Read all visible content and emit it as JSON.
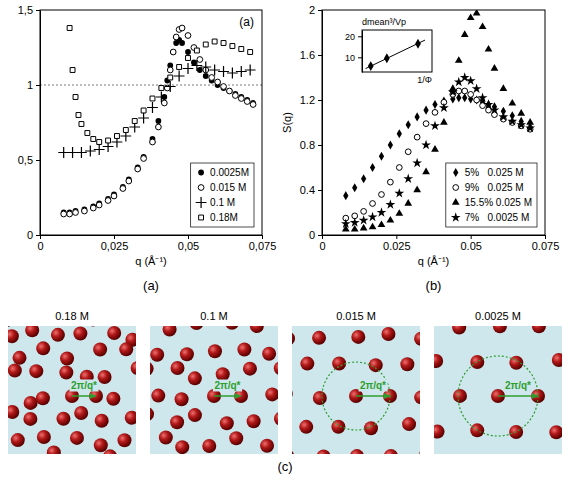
{
  "chart_data": [
    {
      "type": "scatter",
      "title": "(a)",
      "annotations": [
        "(a)"
      ],
      "x_label": "q (Å⁻¹)",
      "xlim": [
        0,
        0.075
      ],
      "xticks": [
        0,
        {
          "value": 0.025,
          "label": "0,025"
        },
        {
          "value": 0.05,
          "label": "0,05"
        },
        {
          "value": 0.075,
          "label": "0,075"
        }
      ],
      "ylim": [
        0,
        1.5
      ],
      "yticks": [
        0,
        {
          "value": 0.5,
          "label": "0,5"
        },
        1,
        {
          "value": 1.5,
          "label": "1,5"
        }
      ],
      "reference_lines": [
        1
      ],
      "legend": "lower right",
      "series": [
        {
          "name": "0.0025M",
          "marker": "filled-circle",
          "color": "#000000",
          "x": [
            0.008,
            0.01,
            0.012,
            0.015,
            0.018,
            0.02,
            0.023,
            0.025,
            0.028,
            0.03,
            0.033,
            0.035,
            0.038,
            0.04,
            0.042,
            0.043,
            0.044,
            0.045,
            0.046,
            0.047,
            0.048,
            0.05,
            0.052,
            0.054,
            0.056,
            0.058,
            0.06,
            0.062,
            0.064,
            0.066,
            0.068,
            0.07,
            0.072
          ],
          "values": [
            0.15,
            0.15,
            0.16,
            0.17,
            0.19,
            0.21,
            0.24,
            0.27,
            0.32,
            0.37,
            0.45,
            0.52,
            0.64,
            0.76,
            0.92,
            1.03,
            1.13,
            1.22,
            1.28,
            1.3,
            1.28,
            1.22,
            1.15,
            1.1,
            1.06,
            1.03,
            1.0,
            0.98,
            0.96,
            0.94,
            0.92,
            0.9,
            0.88
          ]
        },
        {
          "name": "0.015 M",
          "marker": "open-circle",
          "color": "#000000",
          "x": [
            0.008,
            0.01,
            0.012,
            0.015,
            0.018,
            0.02,
            0.023,
            0.025,
            0.028,
            0.03,
            0.033,
            0.035,
            0.038,
            0.04,
            0.042,
            0.043,
            0.044,
            0.045,
            0.046,
            0.047,
            0.048,
            0.05,
            0.052,
            0.054,
            0.056,
            0.058,
            0.06,
            0.062,
            0.064,
            0.066,
            0.068,
            0.07,
            0.072
          ],
          "values": [
            0.14,
            0.14,
            0.15,
            0.16,
            0.18,
            0.2,
            0.23,
            0.26,
            0.31,
            0.36,
            0.44,
            0.51,
            0.62,
            0.72,
            0.88,
            0.98,
            1.1,
            1.22,
            1.32,
            1.37,
            1.38,
            1.33,
            1.25,
            1.17,
            1.1,
            1.05,
            1.02,
            0.99,
            0.96,
            0.93,
            0.91,
            0.89,
            0.87
          ]
        },
        {
          "name": "0.1 M",
          "marker": "plus",
          "color": "#000000",
          "x": [
            0.008,
            0.011,
            0.014,
            0.017,
            0.02,
            0.023,
            0.026,
            0.029,
            0.032,
            0.035,
            0.038,
            0.041,
            0.044,
            0.047,
            0.05,
            0.053,
            0.056,
            0.059,
            0.062,
            0.065,
            0.068,
            0.071
          ],
          "values": [
            0.55,
            0.55,
            0.55,
            0.56,
            0.57,
            0.59,
            0.62,
            0.66,
            0.72,
            0.78,
            0.85,
            0.92,
            0.99,
            1.06,
            1.11,
            1.13,
            1.12,
            1.1,
            1.09,
            1.08,
            1.09,
            1.1
          ]
        },
        {
          "name": "0.18M",
          "marker": "open-square",
          "color": "#000000",
          "x": [
            0.01,
            0.011,
            0.012,
            0.013,
            0.014,
            0.016,
            0.018,
            0.02,
            0.023,
            0.026,
            0.029,
            0.032,
            0.035,
            0.038,
            0.041,
            0.044,
            0.047,
            0.05,
            0.053,
            0.056,
            0.059,
            0.062,
            0.065,
            0.068,
            0.071
          ],
          "values": [
            1.38,
            1.1,
            0.92,
            0.8,
            0.74,
            0.68,
            0.64,
            0.62,
            0.63,
            0.66,
            0.7,
            0.76,
            0.83,
            0.91,
            0.98,
            1.05,
            1.12,
            1.18,
            1.23,
            1.27,
            1.29,
            1.28,
            1.26,
            1.24,
            1.22
          ]
        }
      ]
    },
    {
      "type": "scatter",
      "title": "(b)",
      "x_label": "q (Å⁻¹)",
      "y_label": "S(q)",
      "xlim": [
        0,
        0.075
      ],
      "xticks": [
        0,
        0.025,
        0.05,
        0.075
      ],
      "ylim": [
        0,
        2
      ],
      "yticks": [
        0,
        0.4,
        0.8,
        1.2,
        1.6,
        2
      ],
      "legend": "lower right",
      "series": [
        {
          "name": "5%   0.025 M",
          "marker": "filled-diamond",
          "color": "#000000",
          "x": [
            0.008,
            0.011,
            0.014,
            0.017,
            0.02,
            0.023,
            0.026,
            0.029,
            0.032,
            0.035,
            0.038,
            0.041,
            0.044,
            0.046,
            0.048,
            0.05,
            0.052,
            0.054,
            0.056,
            0.058,
            0.061,
            0.064,
            0.067,
            0.07
          ],
          "values": [
            0.35,
            0.42,
            0.5,
            0.6,
            0.7,
            0.8,
            0.9,
            0.98,
            1.05,
            1.11,
            1.16,
            1.19,
            1.21,
            1.22,
            1.22,
            1.21,
            1.2,
            1.18,
            1.16,
            1.14,
            1.1,
            1.06,
            1.01,
            0.96
          ]
        },
        {
          "name": "9%   0.025 M",
          "marker": "open-circle",
          "color": "#000000",
          "x": [
            0.008,
            0.011,
            0.014,
            0.017,
            0.02,
            0.023,
            0.026,
            0.029,
            0.032,
            0.035,
            0.038,
            0.041,
            0.044,
            0.046,
            0.048,
            0.05,
            0.052,
            0.054,
            0.056,
            0.058,
            0.061,
            0.064,
            0.067,
            0.07
          ],
          "values": [
            0.15,
            0.17,
            0.21,
            0.28,
            0.36,
            0.47,
            0.6,
            0.74,
            0.87,
            0.99,
            1.09,
            1.18,
            1.25,
            1.28,
            1.28,
            1.25,
            1.2,
            1.15,
            1.11,
            1.07,
            1.03,
            1.0,
            0.97,
            0.94
          ]
        },
        {
          "name": "15.5% 0.025 M",
          "marker": "filled-triangle",
          "color": "#000000",
          "x": [
            0.008,
            0.011,
            0.014,
            0.017,
            0.02,
            0.023,
            0.026,
            0.029,
            0.032,
            0.035,
            0.038,
            0.041,
            0.044,
            0.046,
            0.048,
            0.05,
            0.052,
            0.054,
            0.056,
            0.058,
            0.061,
            0.064,
            0.067,
            0.07
          ],
          "values": [
            0.05,
            0.05,
            0.06,
            0.07,
            0.09,
            0.13,
            0.19,
            0.28,
            0.4,
            0.56,
            0.76,
            1.0,
            1.3,
            1.55,
            1.78,
            1.93,
            1.97,
            1.85,
            1.65,
            1.48,
            1.3,
            1.17,
            1.08,
            1.0
          ]
        },
        {
          "name": "7%   0.0025 M",
          "marker": "star",
          "color": "#000000",
          "x": [
            0.008,
            0.011,
            0.014,
            0.017,
            0.02,
            0.023,
            0.026,
            0.029,
            0.032,
            0.035,
            0.038,
            0.041,
            0.044,
            0.046,
            0.048,
            0.05,
            0.052,
            0.054,
            0.056,
            0.058,
            0.061,
            0.064,
            0.067,
            0.07
          ],
          "values": [
            0.1,
            0.11,
            0.13,
            0.16,
            0.2,
            0.27,
            0.37,
            0.5,
            0.64,
            0.8,
            0.97,
            1.13,
            1.27,
            1.36,
            1.4,
            1.37,
            1.3,
            1.22,
            1.16,
            1.11,
            1.05,
            1.01,
            0.98,
            0.95
          ]
        }
      ]
    },
    {
      "type": "scatter",
      "x_label": "1/Φ",
      "y_label": "dmean³/Vp",
      "xlim": [
        4,
        24
      ],
      "ylim": [
        3,
        23
      ],
      "yticks": [
        10,
        20
      ],
      "tick_labels": "y",
      "series": [
        {
          "marker": "filled-diamond",
          "color": "#000000",
          "x": [
            6.5,
            11.1,
            20
          ],
          "values": [
            5.8,
            9.5,
            16.5
          ]
        },
        {
          "type": "line",
          "line_style": "solid",
          "color": "#000000",
          "x": [
            5,
            22
          ],
          "values": [
            4.6,
            18.2
          ]
        }
      ]
    }
  ],
  "diagram": {
    "panels": [
      {
        "label": "0.18 M",
        "distance_label": "2π/q*",
        "neighbour_circle": false
      },
      {
        "label": "0.1 M",
        "distance_label": "2π/q*",
        "neighbour_circle": false
      },
      {
        "label": "0.015 M",
        "distance_label": "2π/q*",
        "neighbour_circle": true
      },
      {
        "label": "0.0025 M",
        "distance_label": "2π/q*",
        "neighbour_circle": true
      }
    ],
    "caption": "(c)"
  }
}
